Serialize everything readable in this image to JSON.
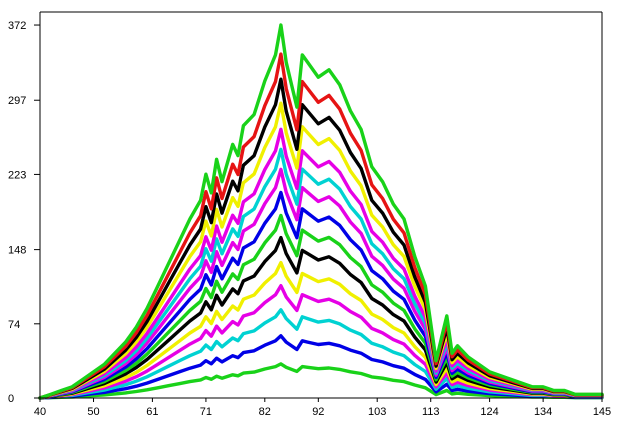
{
  "chart_data": {
    "type": "line",
    "title": "",
    "xlabel": "",
    "ylabel": "",
    "xlim": [
      40,
      145
    ],
    "ylim": [
      0,
      385
    ],
    "x_ticks": [
      "40",
      "50",
      "61",
      "71",
      "82",
      "92",
      "103",
      "113",
      "124",
      "134",
      "145"
    ],
    "y_ticks": [
      "0",
      "74",
      "148",
      "223",
      "297",
      "372"
    ],
    "grid": false,
    "legend": "none",
    "x": [
      40,
      42,
      44,
      46,
      48,
      50,
      52,
      54,
      56,
      58,
      60,
      62,
      64,
      66,
      68,
      70,
      71,
      72,
      73,
      74,
      76,
      77,
      78,
      80,
      82,
      84,
      85,
      86,
      88,
      89,
      90,
      92,
      94,
      96,
      98,
      100,
      102,
      104,
      106,
      108,
      110,
      112,
      114,
      115,
      116,
      117,
      118,
      120,
      122,
      124,
      126,
      128,
      130,
      132,
      134,
      136,
      138,
      140,
      142,
      145
    ],
    "profile": [
      0.0,
      0.01,
      0.02,
      0.03,
      0.05,
      0.07,
      0.09,
      0.12,
      0.15,
      0.19,
      0.24,
      0.3,
      0.36,
      0.42,
      0.48,
      0.53,
      0.6,
      0.55,
      0.64,
      0.58,
      0.68,
      0.65,
      0.73,
      0.76,
      0.85,
      0.92,
      1.0,
      0.9,
      0.78,
      0.92,
      0.9,
      0.86,
      0.88,
      0.84,
      0.77,
      0.72,
      0.62,
      0.58,
      0.52,
      0.48,
      0.38,
      0.3,
      0.1,
      0.16,
      0.22,
      0.12,
      0.14,
      0.11,
      0.09,
      0.07,
      0.06,
      0.05,
      0.04,
      0.03,
      0.03,
      0.02,
      0.02,
      0.01,
      0.01,
      0.01
    ],
    "series": [
      {
        "color": "#19d219",
        "peak": 34
      },
      {
        "color": "#0000e6",
        "peak": 62
      },
      {
        "color": "#00d2d2",
        "peak": 88
      },
      {
        "color": "#e600e6",
        "peak": 112
      },
      {
        "color": "#f0f000",
        "peak": 135
      },
      {
        "color": "#000000",
        "peak": 160
      },
      {
        "color": "#19d219",
        "peak": 182
      },
      {
        "color": "#0000e6",
        "peak": 205
      },
      {
        "color": "#e600e6",
        "peak": 228
      },
      {
        "color": "#00d2d2",
        "peak": 248
      },
      {
        "color": "#e600e6",
        "peak": 268
      },
      {
        "color": "#f0f000",
        "peak": 294
      },
      {
        "color": "#000000",
        "peak": 318
      },
      {
        "color": "#e61414",
        "peak": 343
      },
      {
        "color": "#19d219",
        "peak": 372
      }
    ]
  }
}
